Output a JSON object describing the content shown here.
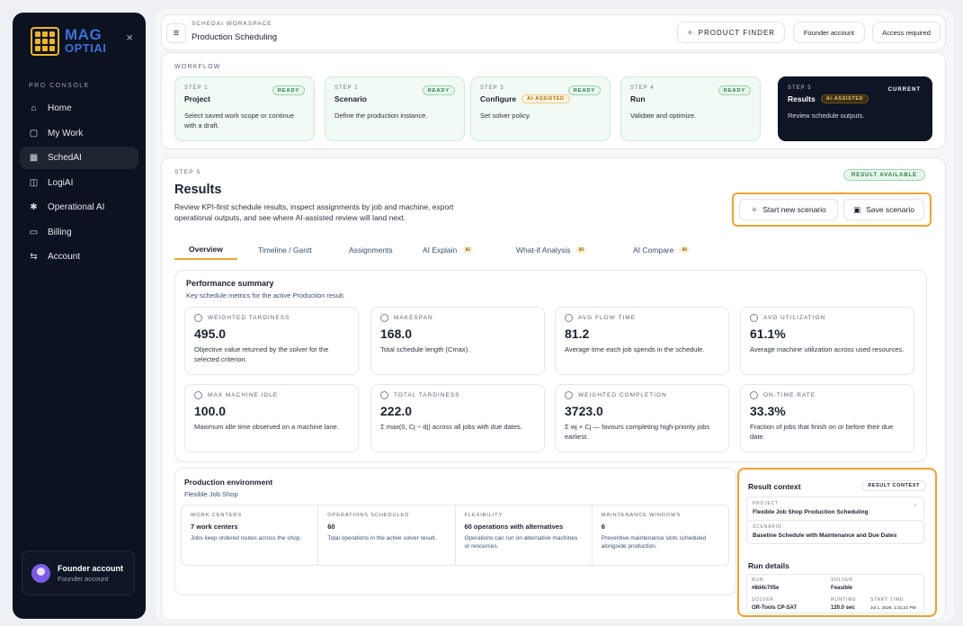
{
  "sidebar": {
    "logo_line1": "MAG",
    "logo_line2": "OPTIAI",
    "close": "×",
    "section_label": "PRO CONSOLE",
    "items": [
      {
        "label": "Home",
        "icon": "home-icon",
        "glyph": "⌂",
        "active": false
      },
      {
        "label": "My Work",
        "icon": "briefcase-icon",
        "glyph": "▢",
        "active": false
      },
      {
        "label": "SchedAI",
        "icon": "calendar-icon",
        "glyph": "▦",
        "active": true
      },
      {
        "label": "LogiAI",
        "icon": "box-icon",
        "glyph": "◫",
        "active": false
      },
      {
        "label": "Operational AI",
        "icon": "atom-icon",
        "glyph": "✱",
        "active": false
      },
      {
        "label": "Billing",
        "icon": "card-icon",
        "glyph": "▭",
        "active": false
      },
      {
        "label": "Account",
        "icon": "switch-icon",
        "glyph": "⇆",
        "active": false
      }
    ],
    "user": {
      "name": "Founder account",
      "role": "Founder account"
    }
  },
  "topbar": {
    "menu_glyph": "≡",
    "workspace_label": "SCHEDAI WORKSPACE",
    "title": "Production Scheduling",
    "product_finder": "PRODUCT FINDER",
    "founder_account": "Founder account",
    "access_required": "Access required"
  },
  "workflow": {
    "label": "WORKFLOW",
    "steps": [
      {
        "no": "STEP 1",
        "title": "Project",
        "badge": "READY",
        "desc": "Select saved work scope or continue with a draft."
      },
      {
        "no": "STEP 2",
        "title": "Scenario",
        "badge": "READY",
        "desc": "Define the production instance."
      },
      {
        "no": "STEP 3",
        "title": "Configure",
        "ai": "AI-ASSISTED",
        "badge": "READY",
        "desc": "Set solver policy."
      },
      {
        "no": "STEP 4",
        "title": "Run",
        "badge": "READY",
        "desc": "Validate and optimize."
      },
      {
        "no": "STEP 5",
        "title": "Results",
        "ai": "AI-ASSISTED",
        "badge": "CURRENT",
        "desc": "Review schedule outputs."
      }
    ]
  },
  "results": {
    "step": "STEP 5",
    "title": "Results",
    "desc": "Review KPI-first schedule results, inspect assignments by job and machine, export operational outputs, and see where AI-assisted review will land next.",
    "available": "RESULT AVAILABLE",
    "start_scenario": "Start new scenario",
    "save_scenario": "Save scenario",
    "tabs": [
      {
        "label": "Overview",
        "ai": false
      },
      {
        "label": "Timeline / Gantt",
        "ai": false
      },
      {
        "label": "Assignments",
        "ai": false
      },
      {
        "label": "AI Explain",
        "ai": true
      },
      {
        "label": "What-if Analysis",
        "ai": true
      },
      {
        "label": "AI Compare",
        "ai": true
      }
    ],
    "ai_tag": "AI"
  },
  "performance": {
    "title": "Performance summary",
    "subtitle": "Key schedule metrics for the active Production result.",
    "kpis": [
      {
        "label": "WEIGHTED TARDINESS",
        "value": "495.0",
        "desc": "Objective value returned by the solver for the selected criterion."
      },
      {
        "label": "MAKESPAN",
        "value": "168.0",
        "desc": "Total schedule length (Cmax)."
      },
      {
        "label": "AVG FLOW TIME",
        "value": "81.2",
        "desc": "Average time each job spends in the schedule."
      },
      {
        "label": "AVG UTILIZATION",
        "value": "61.1%",
        "desc": "Average machine utilization across used resources."
      },
      {
        "label": "MAX MACHINE IDLE",
        "value": "100.0",
        "desc": "Maximum idle time observed on a machine lane."
      },
      {
        "label": "TOTAL TARDINESS",
        "value": "222.0",
        "desc": "Σ max(0, Cj − dj) across all jobs with due dates."
      },
      {
        "label": "WEIGHTED COMPLETION",
        "value": "3723.0",
        "desc": "Σ wj × Cj — favours completing high-priority jobs earliest."
      },
      {
        "label": "ON-TIME RATE",
        "value": "33.3%",
        "desc": "Fraction of jobs that finish on or before their due date."
      }
    ]
  },
  "environment": {
    "title": "Production environment",
    "subtitle": "Flexible Job Shop",
    "cells": [
      {
        "label": "WORK CENTERS",
        "value": "7 work centers",
        "desc": "Jobs keep ordered routes across the shop."
      },
      {
        "label": "OPERATIONS SCHEDULED",
        "value": "60",
        "desc": "Total operations in the active solver result."
      },
      {
        "label": "FLEXIBILITY",
        "value": "60 operations with alternatives",
        "desc": "Operations can run on alternative machines or resources."
      },
      {
        "label": "MAINTENANCE WINDOWS",
        "value": "6",
        "desc": "Preventive maintenance slots scheduled alongside production."
      }
    ]
  },
  "context": {
    "title": "Result context",
    "badge": "RESULT CONTEXT",
    "project_label": "PROJECT",
    "project": "Flexible Job Shop Production Scheduling",
    "scenario_label": "SCENARIO",
    "scenario": "Baseline Schedule with Maintenance and Due Dates",
    "run_title": "Run details",
    "run_label": "RUN",
    "run": "#8d4c705e",
    "solver_label": "SOLVER",
    "solver_status": "Feasible",
    "solver_label2": "SOLVER",
    "solver": "OR-Tools CP-SAT",
    "runtime_label": "RUNTIME",
    "runtime": "120.0 sec",
    "start_label": "START TIME",
    "start": "Jul 1, 2026, 1:31:21 PM",
    "chevron": "›"
  }
}
